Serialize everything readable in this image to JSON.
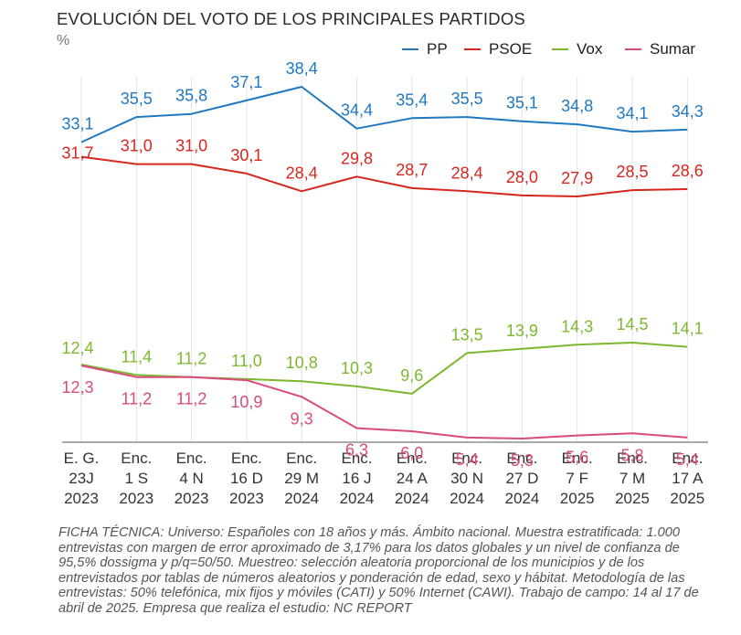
{
  "chart_data": {
    "type": "line",
    "title": "EVOLUCIÓN DEL VOTO DE LOS PRINCIPALES PARTIDOS",
    "unit": "%",
    "categories": [
      [
        "E. G.",
        "23J",
        "2023"
      ],
      [
        "Enc.",
        "1 S",
        "2023"
      ],
      [
        "Enc.",
        "4 N",
        "2023"
      ],
      [
        "Enc.",
        "16 D",
        "2023"
      ],
      [
        "Enc.",
        "29 M",
        "2024"
      ],
      [
        "Enc.",
        "16 J",
        "2024"
      ],
      [
        "Enc.",
        "24 A",
        "2024"
      ],
      [
        "Enc.",
        "30 N",
        "2024"
      ],
      [
        "Enc.",
        "27 D",
        "2024"
      ],
      [
        "Enc.",
        "7 F",
        "2025"
      ],
      [
        "Enc.",
        "7 M",
        "2025"
      ],
      [
        "Enc.",
        "17 A",
        "2025"
      ]
    ],
    "series": [
      {
        "name": "PP",
        "color": "#1f78c1",
        "label_position": "above",
        "values": [
          33.1,
          35.5,
          35.8,
          37.1,
          38.4,
          34.4,
          35.4,
          35.5,
          35.1,
          34.8,
          34.1,
          34.3
        ],
        "labels": [
          "33,1",
          "35,5",
          "35,8",
          "37,1",
          "38,4",
          "34,4",
          "35,4",
          "35,5",
          "35,1",
          "34,8",
          "34,1",
          "34,3"
        ]
      },
      {
        "name": "PSOE",
        "color": "#d7261e",
        "label_position": "above",
        "values": [
          31.7,
          31.0,
          31.0,
          30.1,
          28.4,
          29.8,
          28.7,
          28.4,
          28.0,
          27.9,
          28.5,
          28.6
        ],
        "labels": [
          "31,7",
          "31,0",
          "31,0",
          "30,1",
          "28,4",
          "29,8",
          "28,7",
          "28,4",
          "28,0",
          "27,9",
          "28,5",
          "28,6"
        ]
      },
      {
        "name": "Vox",
        "color": "#7cb82f",
        "label_position": "above",
        "values": [
          12.4,
          11.4,
          11.2,
          11.0,
          10.8,
          10.3,
          9.6,
          13.5,
          13.9,
          14.3,
          14.5,
          14.1
        ],
        "labels": [
          "12,4",
          "11,4",
          "11,2",
          "11,0",
          "10,8",
          "10,3",
          "9,6",
          "13,5",
          "13,9",
          "14,3",
          "14,5",
          "14,1"
        ]
      },
      {
        "name": "Sumar",
        "color": "#d94a7d",
        "label_position": "below",
        "values": [
          12.3,
          11.2,
          11.2,
          10.9,
          9.3,
          6.3,
          6.0,
          5.4,
          5.3,
          5.6,
          5.8,
          5.4
        ],
        "labels": [
          "12,3",
          "11,2",
          "11,2",
          "10,9",
          "9,3",
          "6,3",
          "6,0",
          "5,4",
          "5,3",
          "5,6",
          "5,8",
          "5,4"
        ]
      }
    ],
    "legend_position": "top-right",
    "grid": "vertical"
  },
  "footnote": "FICHA TÉCNICA: Universo: Españoles con 18 años y más. Ámbito nacional. Muestra estratificada: 1.000 entrevistas con margen de error aproximado de 3,17% para los datos globales y un nivel de confianza de 95,5% dossigma y p/q=50/50. Muestreo: selección aleatoria proporcional de los municipios y de los entrevistados por tablas de números aleatorios y ponderación de edad, sexo y hábitat. Metodología de las entrevistas: 50% telefónica, mix fijos y móviles (CATI) y 50% Internet (CAWI). Trabajo de campo: 14 al 17 de abril de 2025. Empresa que realiza el estudio: NC REPORT"
}
